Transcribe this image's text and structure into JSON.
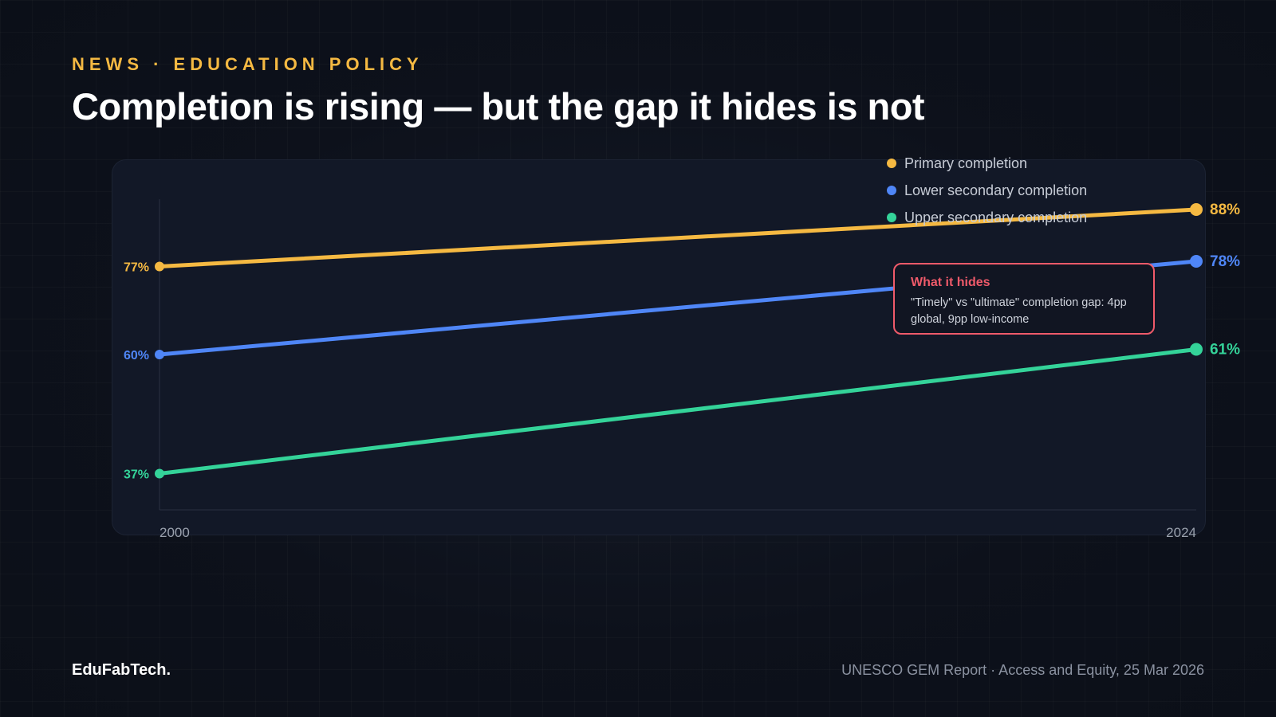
{
  "header": {
    "kicker": "NEWS · EDUCATION POLICY",
    "title": "Completion is rising — but the gap it hides is not"
  },
  "colors": {
    "primary": "#f5b942",
    "lower_secondary": "#4f86f7",
    "upper_secondary": "#34d399",
    "callout": "#ef5a6a"
  },
  "chart_data": {
    "type": "line",
    "x": [
      2000,
      2024
    ],
    "x_tick_labels": [
      "2000",
      "2024"
    ],
    "ylim": [
      30,
      90
    ],
    "grid": false,
    "legend_position": "top-right",
    "series": [
      {
        "name": "Primary completion",
        "values": [
          77,
          88
        ],
        "labels": [
          "77%",
          "88%"
        ],
        "color": "#f5b942"
      },
      {
        "name": "Lower secondary completion",
        "values": [
          60,
          78
        ],
        "labels": [
          "60%",
          "78%"
        ],
        "color": "#4f86f7"
      },
      {
        "name": "Upper secondary completion",
        "values": [
          37,
          61
        ],
        "labels": [
          "37%",
          "61%"
        ],
        "color": "#34d399"
      }
    ],
    "annotation": {
      "title": "What it hides",
      "text": "\"Timely\" vs \"ultimate\" completion gap: 4pp global, 9pp low-income"
    }
  },
  "footer": {
    "brand": "EduFabTech.",
    "source": "UNESCO GEM Report · Access and Equity, 25 Mar 2026"
  }
}
